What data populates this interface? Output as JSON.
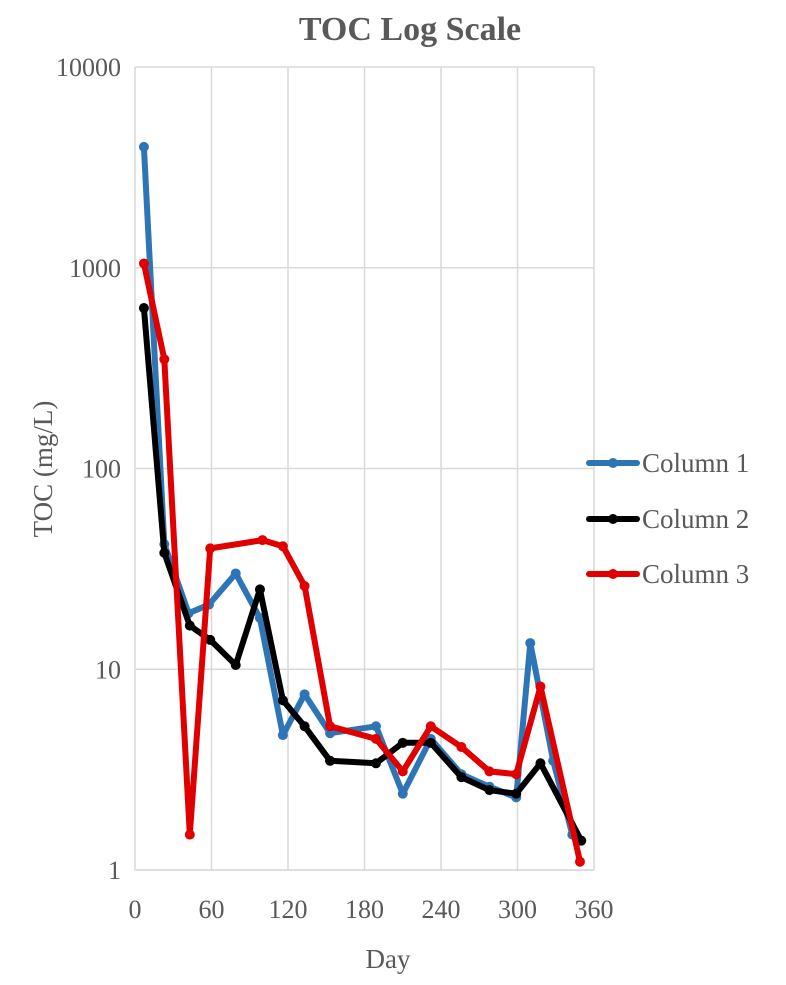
{
  "chart_data": {
    "type": "line",
    "title": "TOC Log Scale",
    "xlabel": "Day",
    "ylabel": "TOC (mg/L)",
    "xlim": [
      0,
      360
    ],
    "ylim": [
      1,
      10000
    ],
    "yscale": "log",
    "xticks": [
      0,
      60,
      120,
      180,
      240,
      300,
      360
    ],
    "xtick_labels": [
      "0",
      "60",
      "120",
      "180",
      "240",
      "300",
      "360"
    ],
    "yticks": [
      1,
      10,
      100,
      1000,
      10000
    ],
    "ytick_labels": [
      "1",
      "10",
      "100",
      "1000",
      "10000"
    ],
    "grid": true,
    "legend": "right",
    "series": [
      {
        "name": "Column 1",
        "color": "#2E75B6",
        "x": [
          7,
          23,
          42,
          58,
          79,
          98,
          116,
          133,
          153,
          189,
          210,
          232,
          256,
          278,
          299,
          310,
          328,
          343
        ],
        "y": [
          4000,
          42,
          19,
          21,
          30,
          18,
          4.7,
          7.5,
          4.8,
          5.2,
          2.4,
          4.5,
          3.0,
          2.6,
          2.3,
          13.5,
          3.5,
          1.5
        ]
      },
      {
        "name": "Column 2",
        "color": "#000000",
        "x": [
          7,
          23,
          43,
          59,
          79,
          98,
          116,
          133,
          153,
          189,
          210,
          232,
          256,
          278,
          299,
          318,
          350
        ],
        "y": [
          630,
          38,
          16.5,
          14,
          10.5,
          25,
          7.0,
          5.2,
          3.5,
          3.4,
          4.3,
          4.3,
          2.9,
          2.5,
          2.4,
          3.4,
          1.4
        ]
      },
      {
        "name": "Column 3",
        "color": "#E00000",
        "x": [
          7,
          23,
          43,
          59,
          100,
          116,
          133,
          153,
          189,
          210,
          232,
          256,
          278,
          299,
          318,
          349
        ],
        "y": [
          1050,
          350,
          1.5,
          40,
          44,
          41,
          26,
          5.2,
          4.5,
          3.1,
          5.2,
          4.1,
          3.1,
          3.0,
          8.2,
          1.1
        ]
      }
    ]
  }
}
